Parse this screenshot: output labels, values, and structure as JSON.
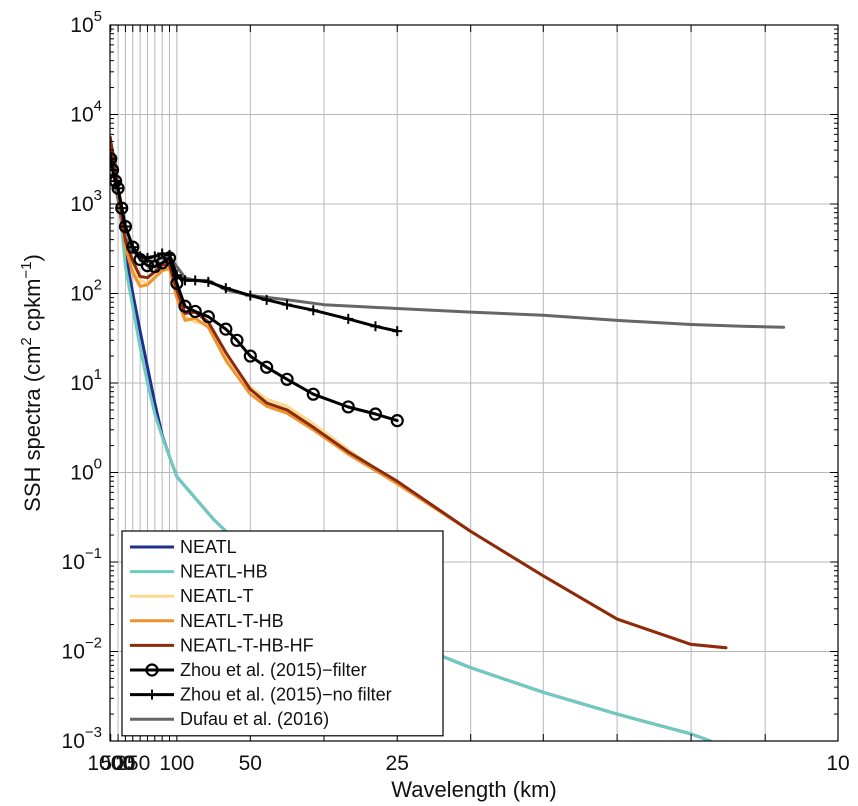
{
  "chart_data": {
    "type": "line",
    "xlabel": "Wavelength (km)",
    "ylabel_text": "SSH spectra (cm",
    "ylabel_sup1": "2",
    "ylabel_mid": " cpkm",
    "ylabel_sup2": "−1",
    "ylabel_end": ")",
    "x_scale": "reciprocal (cycles per km), axis labeled in km",
    "y_scale": "log",
    "grid": true,
    "legend_position": "bottom-left",
    "xlim_km": [
      1111,
      10
    ],
    "ylim": [
      0.001,
      100000
    ],
    "x_ticks": [
      {
        "value": 1000,
        "label": "1000"
      },
      {
        "value": 500,
        "label": "500"
      },
      {
        "value": 250,
        "label": "250"
      },
      {
        "value": 100,
        "label": "100"
      },
      {
        "value": 50,
        "label": "50"
      },
      {
        "value": 25,
        "label": "25"
      },
      {
        "value": 10,
        "label": "10"
      }
    ],
    "x_grid_km": [
      1000,
      500,
      333.3,
      250,
      200,
      166.7,
      142.9,
      125,
      111.1,
      100,
      50,
      33.3,
      25,
      20,
      16.7,
      14.3,
      12.5,
      11.1,
      10
    ],
    "y_ticks": [
      {
        "value": 0.001,
        "base": "10",
        "exp": "−3"
      },
      {
        "value": 0.01,
        "base": "10",
        "exp": "−2"
      },
      {
        "value": 0.1,
        "base": "10",
        "exp": "−1"
      },
      {
        "value": 1,
        "base": "10",
        "exp": "0"
      },
      {
        "value": 10,
        "base": "10",
        "exp": "1"
      },
      {
        "value": 100,
        "base": "10",
        "exp": "2"
      },
      {
        "value": 1000,
        "base": "10",
        "exp": "3"
      },
      {
        "value": 10000,
        "base": "10",
        "exp": "4"
      },
      {
        "value": 100000,
        "base": "10",
        "exp": "5"
      }
    ],
    "series": [
      {
        "name": "NEATL",
        "color": "#1f2f8f",
        "width": 3,
        "marker": "none",
        "points": [
          [
            1080,
            5200
          ],
          [
            600,
            2700
          ],
          [
            500,
            1550
          ],
          [
            400,
            600
          ],
          [
            333,
            290
          ],
          [
            250,
            100
          ],
          [
            200,
            38
          ],
          [
            166.7,
            15
          ],
          [
            142.9,
            6
          ],
          [
            125,
            2.6
          ],
          [
            111.1,
            1.5
          ],
          [
            100,
            0.9
          ],
          [
            66.7,
            0.3
          ],
          [
            50,
            0.12
          ],
          [
            33.3,
            0.035
          ],
          [
            25,
            0.014
          ],
          [
            20,
            0.0066
          ],
          [
            16.7,
            0.0035
          ],
          [
            14.3,
            0.002
          ],
          [
            12.5,
            0.0012
          ],
          [
            12.1,
            0.001
          ]
        ]
      },
      {
        "name": "NEATL-HB",
        "color": "#6fcac0",
        "width": 3,
        "marker": "none",
        "points": [
          [
            1080,
            4800
          ],
          [
            600,
            2500
          ],
          [
            500,
            1400
          ],
          [
            400,
            520
          ],
          [
            333,
            200
          ],
          [
            250,
            70
          ],
          [
            200,
            25
          ],
          [
            166.7,
            10
          ],
          [
            142.9,
            4.5
          ],
          [
            125,
            2.5
          ],
          [
            111.1,
            1.5
          ],
          [
            100,
            0.9
          ],
          [
            66.7,
            0.3
          ],
          [
            50,
            0.12
          ],
          [
            33.3,
            0.035
          ],
          [
            25,
            0.014
          ],
          [
            20,
            0.0066
          ],
          [
            16.7,
            0.0035
          ],
          [
            14.3,
            0.002
          ],
          [
            12.5,
            0.0012
          ],
          [
            12.1,
            0.001
          ]
        ]
      },
      {
        "name": "NEATL-T",
        "color": "#fbd98f",
        "width": 3,
        "marker": "none",
        "points": [
          [
            1080,
            4500
          ],
          [
            800,
            3300
          ],
          [
            600,
            2100
          ],
          [
            500,
            1500
          ],
          [
            400,
            700
          ],
          [
            333,
            380
          ],
          [
            250,
            200
          ],
          [
            200,
            140
          ],
          [
            166.7,
            130
          ],
          [
            142.9,
            155
          ],
          [
            125,
            190
          ],
          [
            111.1,
            200
          ],
          [
            100,
            100
          ],
          [
            90,
            55
          ],
          [
            80,
            48
          ],
          [
            70,
            45
          ],
          [
            60,
            20
          ],
          [
            50,
            9
          ],
          [
            45,
            6.6
          ],
          [
            40,
            5.5
          ],
          [
            35,
            3.5
          ],
          [
            30,
            1.8
          ],
          [
            25,
            0.75
          ],
          [
            20,
            0.22
          ],
          [
            16.7,
            0.07
          ],
          [
            14.3,
            0.023
          ],
          [
            12.5,
            0.012
          ],
          [
            11.8,
            0.011
          ]
        ]
      },
      {
        "name": "NEATL-T-HB",
        "color": "#f0922d",
        "width": 3,
        "marker": "none",
        "points": [
          [
            1080,
            4600
          ],
          [
            800,
            3200
          ],
          [
            600,
            2000
          ],
          [
            500,
            1400
          ],
          [
            400,
            700
          ],
          [
            333,
            330
          ],
          [
            250,
            170
          ],
          [
            200,
            120
          ],
          [
            166.7,
            125
          ],
          [
            142.9,
            150
          ],
          [
            125,
            180
          ],
          [
            111.1,
            190
          ],
          [
            100,
            90
          ],
          [
            90,
            50
          ],
          [
            80,
            53
          ],
          [
            70,
            42
          ],
          [
            60,
            18
          ],
          [
            50,
            7.5
          ],
          [
            45,
            5.5
          ],
          [
            40,
            4.6
          ],
          [
            35,
            3
          ],
          [
            30,
            1.6
          ],
          [
            25,
            0.75
          ],
          [
            20,
            0.22
          ],
          [
            16.7,
            0.07
          ],
          [
            14.3,
            0.023
          ],
          [
            12.5,
            0.012
          ],
          [
            11.8,
            0.011
          ]
        ]
      },
      {
        "name": "NEATL-T-HB-HF",
        "color": "#8c2a0e",
        "width": 3,
        "marker": "none",
        "points": [
          [
            1080,
            5600
          ],
          [
            800,
            3600
          ],
          [
            600,
            2200
          ],
          [
            500,
            1500
          ],
          [
            400,
            750
          ],
          [
            333,
            390
          ],
          [
            250,
            230
          ],
          [
            200,
            155
          ],
          [
            166.7,
            150
          ],
          [
            142.9,
            175
          ],
          [
            125,
            210
          ],
          [
            111.1,
            210
          ],
          [
            100,
            110
          ],
          [
            90,
            60
          ],
          [
            80,
            62
          ],
          [
            70,
            48
          ],
          [
            60,
            22
          ],
          [
            50,
            8.5
          ],
          [
            45,
            6
          ],
          [
            40,
            5
          ],
          [
            35,
            3.2
          ],
          [
            30,
            1.7
          ],
          [
            25,
            0.8
          ],
          [
            20,
            0.22
          ],
          [
            16.7,
            0.07
          ],
          [
            14.3,
            0.023
          ],
          [
            12.5,
            0.012
          ],
          [
            11.8,
            0.011
          ]
        ]
      },
      {
        "name": "Zhou et al. (2015)−filter",
        "color": "#000000",
        "width": 3,
        "marker": "circle",
        "points": [
          [
            1000,
            3200
          ],
          [
            800,
            2400
          ],
          [
            600,
            1800
          ],
          [
            500,
            1500
          ],
          [
            400,
            900
          ],
          [
            333,
            560
          ],
          [
            250,
            330
          ],
          [
            200,
            240
          ],
          [
            166.7,
            205
          ],
          [
            142.9,
            200
          ],
          [
            125,
            220
          ],
          [
            111.1,
            250
          ],
          [
            100,
            130
          ],
          [
            90,
            72
          ],
          [
            80,
            63
          ],
          [
            70,
            55
          ],
          [
            60,
            40
          ],
          [
            55,
            30
          ],
          [
            50,
            20
          ],
          [
            45,
            15
          ],
          [
            40,
            11
          ],
          [
            35,
            7.5
          ],
          [
            30,
            5.4
          ],
          [
            27,
            4.5
          ],
          [
            25,
            3.8
          ]
        ]
      },
      {
        "name": "Zhou et al. (2015)−no filter",
        "color": "#000000",
        "width": 3,
        "marker": "plus",
        "points": [
          [
            1000,
            3200
          ],
          [
            800,
            2400
          ],
          [
            600,
            1800
          ],
          [
            500,
            1500
          ],
          [
            400,
            900
          ],
          [
            333,
            560
          ],
          [
            250,
            330
          ],
          [
            200,
            260
          ],
          [
            166.7,
            250
          ],
          [
            142.9,
            260
          ],
          [
            125,
            280
          ],
          [
            111.1,
            270
          ],
          [
            100,
            160
          ],
          [
            90,
            140
          ],
          [
            80,
            140
          ],
          [
            70,
            135
          ],
          [
            60,
            115
          ],
          [
            50,
            95
          ],
          [
            45,
            85
          ],
          [
            40,
            75
          ],
          [
            35,
            65
          ],
          [
            30,
            52
          ],
          [
            27,
            43
          ],
          [
            25,
            38
          ]
        ]
      },
      {
        "name": "Dufau et al. (2016)",
        "color": "#666666",
        "width": 3,
        "marker": "none",
        "points": [
          [
            1080,
            4000
          ],
          [
            800,
            2600
          ],
          [
            600,
            1600
          ],
          [
            500,
            1100
          ],
          [
            400,
            620
          ],
          [
            333,
            420
          ],
          [
            250,
            300
          ],
          [
            200,
            250
          ],
          [
            166.7,
            230
          ],
          [
            142.9,
            230
          ],
          [
            125,
            250
          ],
          [
            111.1,
            260
          ],
          [
            100,
            200
          ],
          [
            90,
            150
          ],
          [
            80,
            140
          ],
          [
            70,
            140
          ],
          [
            60,
            110
          ],
          [
            50,
            95
          ],
          [
            40,
            85
          ],
          [
            33.3,
            75
          ],
          [
            25,
            68
          ],
          [
            20,
            62
          ],
          [
            16.7,
            57
          ],
          [
            14.3,
            50
          ],
          [
            12.5,
            45
          ],
          [
            11.5,
            43
          ],
          [
            10.8,
            42
          ]
        ]
      }
    ]
  }
}
